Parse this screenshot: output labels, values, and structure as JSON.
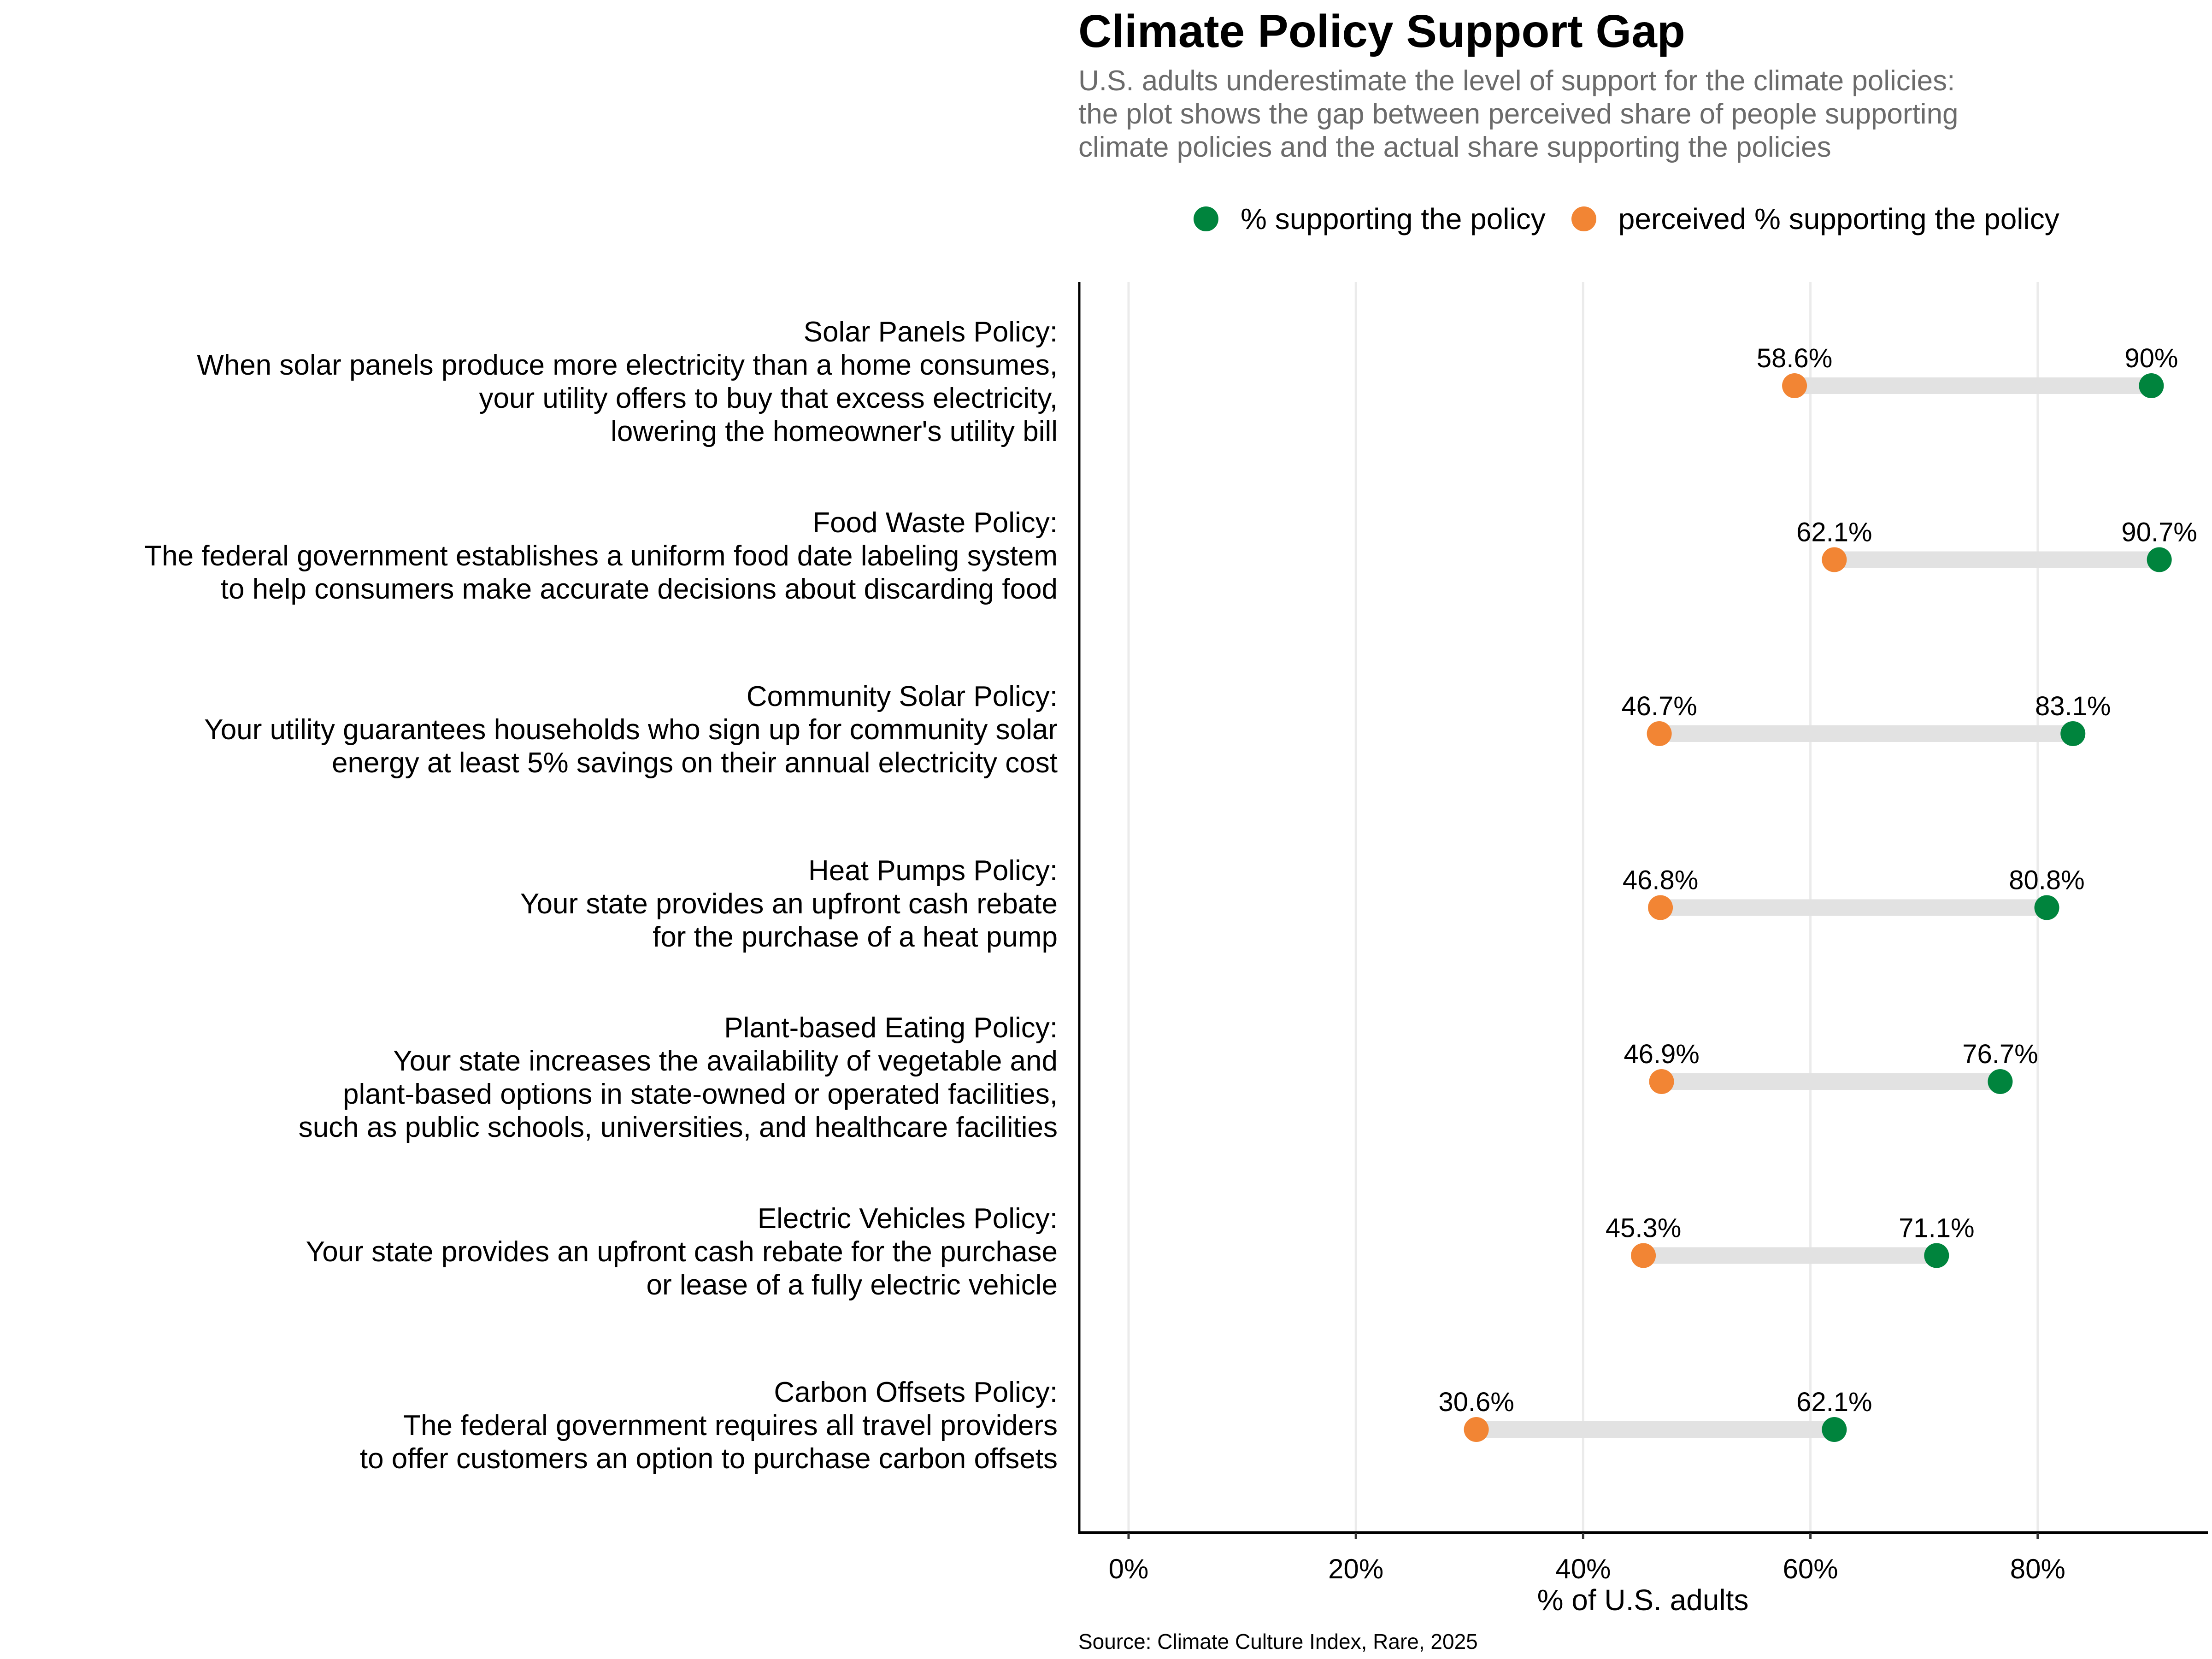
{
  "chart_data": {
    "type": "dumbbell",
    "title": "Climate Policy Support Gap",
    "subtitle": "U.S. adults underestimate the level of support for the climate policies:\nthe plot shows the gap between perceived share of people supporting\nclimate policies and the actual share supporting the policies",
    "xlabel": "% of U.S. adults",
    "ylabel": "",
    "xlim": [
      -5,
      95
    ],
    "x_ticks": [
      0,
      20,
      40,
      60,
      80
    ],
    "x_tick_labels": [
      "0%",
      "20%",
      "40%",
      "60%",
      "80%"
    ],
    "grid": "vertical major gridlines",
    "legend_position": "top",
    "caption": "Source: Climate Culture Index, Rare, 2025",
    "series": [
      {
        "name": "% supporting the policy",
        "color": "#00843d"
      },
      {
        "name": "perceived % supporting the policy",
        "color": "#f28534"
      }
    ],
    "connector_color": "#e2e2e2",
    "categories": [
      {
        "label": "Solar Panels Policy:\nWhen solar panels produce more electricity than a home consumes,\nyour utility offers to buy that excess electricity,\nlowering the homeowner's utility bill",
        "actual": 90,
        "perceived": 58.6,
        "actual_label": "90%",
        "perceived_label": "58.6%"
      },
      {
        "label": "Food Waste Policy:\nThe federal government establishes a uniform food date labeling system\nto help consumers make accurate decisions about discarding food",
        "actual": 90.7,
        "perceived": 62.1,
        "actual_label": "90.7%",
        "perceived_label": "62.1%"
      },
      {
        "label": "Community Solar Policy:\nYour utility guarantees households who sign up for community solar\nenergy at least 5% savings on their annual electricity cost",
        "actual": 83.1,
        "perceived": 46.7,
        "actual_label": "83.1%",
        "perceived_label": "46.7%"
      },
      {
        "label": "Heat Pumps Policy:\nYour state provides an upfront cash rebate\nfor the purchase of a heat pump",
        "actual": 80.8,
        "perceived": 46.8,
        "actual_label": "80.8%",
        "perceived_label": "46.8%"
      },
      {
        "label": "Plant-based Eating Policy:\nYour state increases the availability of vegetable and\nplant-based options in state-owned or operated facilities,\nsuch as public schools, universities, and healthcare facilities",
        "actual": 76.7,
        "perceived": 46.9,
        "actual_label": "76.7%",
        "perceived_label": "46.9%"
      },
      {
        "label": "Electric Vehicles Policy:\nYour state provides an upfront cash rebate for the purchase\nor lease of a fully electric vehicle",
        "actual": 71.1,
        "perceived": 45.3,
        "actual_label": "71.1%",
        "perceived_label": "45.3%"
      },
      {
        "label": "Carbon Offsets Policy:\nThe federal government requires all travel providers\nto offer customers an option to purchase carbon offsets",
        "actual": 62.1,
        "perceived": 30.6,
        "actual_label": "62.1%",
        "perceived_label": "30.6%"
      }
    ]
  }
}
